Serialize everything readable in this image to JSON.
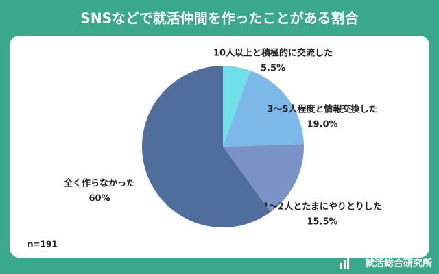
{
  "chart_data": {
    "type": "pie",
    "title": "SNSなどで就活仲間を作ったことがある割合",
    "categories": [
      "10人以上と積極的に交流した",
      "3〜5人程度と情報交換した",
      "1〜2人とたまにやりとりした",
      "全く作らなかった"
    ],
    "values": [
      5.5,
      19.0,
      15.5,
      60
    ],
    "value_labels": [
      "5.5%",
      "19.0%",
      "15.5%",
      "60%"
    ],
    "colors": [
      "#6fe0e8",
      "#7db9e8",
      "#7b92c6",
      "#506e9c"
    ],
    "note": "n=191",
    "brand": "就活総合研究所"
  }
}
